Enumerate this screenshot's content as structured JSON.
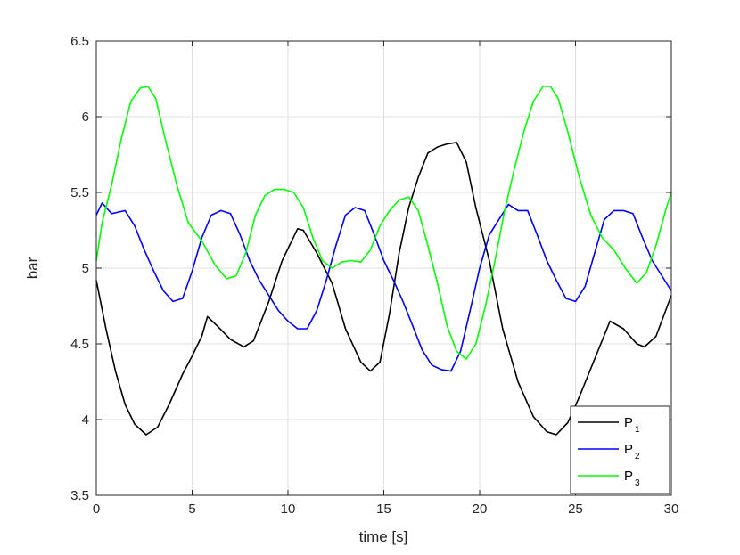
{
  "chart_data": {
    "type": "line",
    "title": "",
    "xlabel": "time [s]",
    "ylabel": "bar",
    "xlim": [
      0,
      30
    ],
    "ylim": [
      3.5,
      6.5
    ],
    "xticks": [
      "0",
      "5",
      "10",
      "15",
      "20",
      "25",
      "30"
    ],
    "yticks": [
      "3.5",
      "4",
      "4.5",
      "5",
      "5.5",
      "6",
      "6.5"
    ],
    "grid": true,
    "legend_position": "bottom-right",
    "series": [
      {
        "name": "P",
        "subscript": "1",
        "color": "#000000",
        "x": [
          0,
          0.5,
          1,
          1.5,
          2,
          2.6,
          3.2,
          3.8,
          4.5,
          5,
          5.5,
          5.8,
          6.3,
          7,
          7.7,
          8.2,
          9,
          9.7,
          10.5,
          10.8,
          11.5,
          12.3,
          13,
          13.8,
          14.3,
          14.8,
          15.3,
          15.8,
          16.3,
          16.8,
          17.3,
          17.8,
          18.3,
          18.8,
          19.3,
          19.8,
          20.5,
          21.2,
          22,
          22.8,
          23.5,
          24,
          24.6,
          25.2,
          26,
          26.8,
          27.5,
          28.2,
          28.6,
          29.2,
          30
        ],
        "y": [
          4.92,
          4.6,
          4.32,
          4.1,
          3.97,
          3.9,
          3.95,
          4.1,
          4.3,
          4.42,
          4.55,
          4.68,
          4.62,
          4.53,
          4.48,
          4.52,
          4.78,
          5.05,
          5.26,
          5.25,
          5.1,
          4.9,
          4.6,
          4.38,
          4.32,
          4.38,
          4.7,
          5.1,
          5.4,
          5.6,
          5.76,
          5.8,
          5.82,
          5.83,
          5.7,
          5.4,
          5.05,
          4.6,
          4.25,
          4.02,
          3.92,
          3.9,
          3.98,
          4.15,
          4.4,
          4.65,
          4.6,
          4.5,
          4.48,
          4.55,
          4.82
        ]
      },
      {
        "name": "P",
        "subscript": "2",
        "color": "#0000ff",
        "x": [
          0,
          0.3,
          0.8,
          1.5,
          2,
          2.5,
          3,
          3.5,
          4,
          4.5,
          5,
          5.5,
          6,
          6.5,
          7,
          7.5,
          8,
          8.5,
          9,
          9.5,
          10,
          10.5,
          11,
          11.5,
          12,
          12.5,
          13,
          13.5,
          14,
          14.5,
          15,
          15.5,
          16,
          16.5,
          17,
          17.5,
          18,
          18.5,
          19,
          19.5,
          20,
          20.5,
          21,
          21.5,
          22,
          22.5,
          23,
          23.5,
          24,
          24.5,
          25,
          25.5,
          26,
          26.5,
          27,
          27.5,
          28,
          28.5,
          29,
          29.5,
          30
        ],
        "y": [
          5.35,
          5.43,
          5.36,
          5.38,
          5.28,
          5.12,
          4.98,
          4.85,
          4.78,
          4.8,
          4.98,
          5.2,
          5.35,
          5.38,
          5.36,
          5.22,
          5.05,
          4.92,
          4.82,
          4.72,
          4.65,
          4.6,
          4.6,
          4.72,
          4.92,
          5.15,
          5.35,
          5.4,
          5.38,
          5.22,
          5.05,
          4.92,
          4.78,
          4.62,
          4.46,
          4.36,
          4.33,
          4.32,
          4.45,
          4.72,
          5.0,
          5.22,
          5.32,
          5.42,
          5.38,
          5.38,
          5.22,
          5.05,
          4.92,
          4.8,
          4.78,
          4.88,
          5.1,
          5.32,
          5.38,
          5.38,
          5.36,
          5.2,
          5.05,
          4.95,
          4.85
        ]
      },
      {
        "name": "P",
        "subscript": "3",
        "color": "#00ff00",
        "x": [
          0,
          0.3,
          0.8,
          1.3,
          1.8,
          2.3,
          2.7,
          3.1,
          3.6,
          4.2,
          4.8,
          5.5,
          6.2,
          6.8,
          7.3,
          7.8,
          8.3,
          8.8,
          9.3,
          9.8,
          10.3,
          10.8,
          11.3,
          11.8,
          12.3,
          12.8,
          13.3,
          13.8,
          14.3,
          14.8,
          15.3,
          15.8,
          16.3,
          16.8,
          17.3,
          17.8,
          18.3,
          18.8,
          19.3,
          19.8,
          20.3,
          20.8,
          21.3,
          21.8,
          22.3,
          22.8,
          23.3,
          23.7,
          24.1,
          24.6,
          25.2,
          25.8,
          26.4,
          27,
          27.6,
          28.2,
          28.7,
          29.2,
          29.7,
          30
        ],
        "y": [
          5.05,
          5.3,
          5.55,
          5.85,
          6.1,
          6.19,
          6.2,
          6.12,
          5.85,
          5.55,
          5.3,
          5.18,
          5.02,
          4.93,
          4.95,
          5.1,
          5.35,
          5.48,
          5.52,
          5.52,
          5.5,
          5.4,
          5.2,
          5.05,
          5.0,
          5.04,
          5.05,
          5.04,
          5.12,
          5.28,
          5.38,
          5.45,
          5.47,
          5.38,
          5.15,
          4.9,
          4.62,
          4.45,
          4.4,
          4.5,
          4.75,
          5.05,
          5.38,
          5.65,
          5.9,
          6.1,
          6.2,
          6.2,
          6.12,
          5.9,
          5.6,
          5.35,
          5.2,
          5.12,
          5.0,
          4.9,
          4.97,
          5.15,
          5.38,
          5.5
        ]
      }
    ]
  }
}
